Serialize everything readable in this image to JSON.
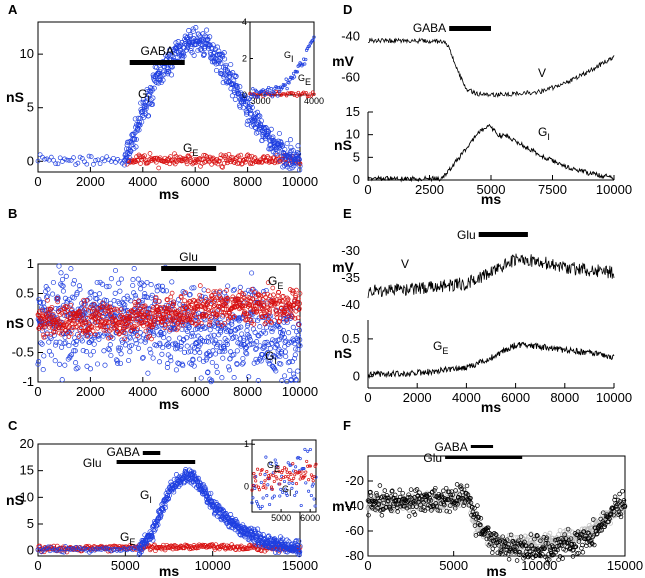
{
  "colors": {
    "gi": "#1f3fe0",
    "ge": "#d81010",
    "axis": "#000000",
    "gray": "#bbbbbb",
    "black": "#000000"
  },
  "chart_data": [
    {
      "panel": "A",
      "type": "scatter",
      "title": "A",
      "xlabel": "ms",
      "ylabel": "nS",
      "xlim": [
        0,
        10000
      ],
      "ylim": [
        -1,
        13
      ],
      "xticks": [
        0,
        2000,
        4000,
        6000,
        8000,
        10000
      ],
      "yticks": [
        0,
        5,
        10
      ],
      "bar": {
        "label": "GABA",
        "x0": 3500,
        "x1": 5600
      },
      "series": [
        {
          "name": "G",
          "sub": "I",
          "color": "gi",
          "points": [
            [
              0,
              0
            ],
            [
              3300,
              0
            ],
            [
              3600,
              1.8
            ],
            [
              4000,
              4.5
            ],
            [
              4500,
              7.5
            ],
            [
              5000,
              9.3
            ],
            [
              5500,
              10.6
            ],
            [
              6000,
              11.3
            ],
            [
              6500,
              10.8
            ],
            [
              7000,
              9.2
            ],
            [
              7500,
              7.0
            ],
            [
              8000,
              4.8
            ],
            [
              8500,
              3.0
            ],
            [
              9000,
              1.6
            ],
            [
              9500,
              0.6
            ],
            [
              10000,
              0.1
            ]
          ]
        },
        {
          "name": "G",
          "sub": "E",
          "color": "ge",
          "points": [
            [
              3500,
              0.1
            ],
            [
              6000,
              0.1
            ],
            [
              10000,
              0.1
            ]
          ]
        }
      ],
      "inset": {
        "xlim": [
          2800,
          4000
        ],
        "ylim": [
          0,
          4
        ],
        "xticks": [
          3000,
          4000
        ],
        "yticks": [
          0,
          2,
          4
        ],
        "labels": [
          {
            "name": "G",
            "sub": "I",
            "color": "gi"
          },
          {
            "name": "G",
            "sub": "E",
            "color": "ge"
          }
        ]
      }
    },
    {
      "panel": "B",
      "type": "scatter",
      "title": "B",
      "xlabel": "ms",
      "ylabel": "nS",
      "xlim": [
        0,
        10000
      ],
      "ylim": [
        -1,
        1
      ],
      "xticks": [
        0,
        2000,
        4000,
        6000,
        8000,
        10000
      ],
      "yticks": [
        1,
        0.5,
        0,
        -0.5,
        -1
      ],
      "ytick_labels": [
        "1",
        "0.5",
        "0",
        "-0.5",
        "-1"
      ],
      "bar": {
        "label": "Glu",
        "x0": 4700,
        "x1": 6800
      },
      "series": [
        {
          "name": "G",
          "sub": "E",
          "color": "ge",
          "points": [
            [
              0,
              0.05
            ],
            [
              3000,
              0.05
            ],
            [
              4000,
              0.05
            ],
            [
              5000,
              0.15
            ],
            [
              6000,
              0.25
            ],
            [
              7000,
              0.3
            ],
            [
              8000,
              0.3
            ],
            [
              9000,
              0.3
            ],
            [
              10000,
              0.3
            ]
          ]
        },
        {
          "name": "G",
          "sub": "I",
          "color": "gi",
          "points": [
            [
              0,
              0.05
            ],
            [
              4000,
              0.05
            ],
            [
              5000,
              -0.05
            ],
            [
              6000,
              -0.15
            ],
            [
              7000,
              -0.2
            ],
            [
              8000,
              -0.25
            ],
            [
              9000,
              -0.3
            ],
            [
              10000,
              -0.4
            ]
          ]
        }
      ]
    },
    {
      "panel": "C",
      "type": "scatter",
      "title": "C",
      "xlabel": "ms",
      "ylabel": "nS",
      "xlim": [
        0,
        15000
      ],
      "ylim": [
        -1,
        20
      ],
      "xticks": [
        0,
        5000,
        10000,
        15000
      ],
      "yticks": [
        0,
        5,
        10,
        15,
        20
      ],
      "bars": [
        {
          "label": "GABA",
          "x0": 6000,
          "x1": 7000
        },
        {
          "label": "Glu",
          "x0": 4500,
          "x1": 9000
        }
      ],
      "series": [
        {
          "name": "G",
          "sub": "I",
          "color": "gi",
          "points": [
            [
              0,
              0.3
            ],
            [
              5800,
              0.3
            ],
            [
              6500,
              3
            ],
            [
              7000,
              7
            ],
            [
              7500,
              11
            ],
            [
              8000,
              13.2
            ],
            [
              8500,
              14
            ],
            [
              9000,
              13.2
            ],
            [
              9500,
              11
            ],
            [
              10000,
              8.5
            ],
            [
              11000,
              5.5
            ],
            [
              12000,
              3.3
            ],
            [
              13000,
              1.8
            ],
            [
              14000,
              0.8
            ],
            [
              15000,
              0.3
            ]
          ]
        },
        {
          "name": "G",
          "sub": "E",
          "color": "ge",
          "points": [
            [
              0,
              0.3
            ],
            [
              6000,
              0.6
            ],
            [
              9000,
              0.8
            ],
            [
              15000,
              0.4
            ]
          ]
        }
      ],
      "inset": {
        "xlim": [
          4000,
          6200
        ],
        "ylim": [
          -0.6,
          1.1
        ],
        "xticks": [
          5000,
          6000
        ],
        "yticks": [
          1,
          0
        ],
        "labels": [
          {
            "name": "G",
            "sub": "E",
            "color": "ge"
          },
          {
            "name": "G",
            "sub": "I",
            "color": "gi"
          }
        ]
      }
    },
    {
      "panel": "D",
      "type": "line",
      "title": "D",
      "subplots": [
        {
          "name": "V",
          "ylabel": "mV",
          "ylim": [
            -72,
            -35
          ],
          "yticks": [
            -40,
            -60
          ],
          "bar": {
            "label": "GABA",
            "x0": 3300,
            "x1": 5000
          },
          "points": [
            [
              0,
              -42
            ],
            [
              3000,
              -42.5
            ],
            [
              3300,
              -45
            ],
            [
              3600,
              -56
            ],
            [
              4000,
              -66
            ],
            [
              4500,
              -68
            ],
            [
              5000,
              -68.5
            ],
            [
              6000,
              -68
            ],
            [
              7000,
              -67
            ],
            [
              8000,
              -63
            ],
            [
              9000,
              -57
            ],
            [
              10000,
              -50
            ]
          ]
        },
        {
          "name": "G",
          "sub": "I",
          "ylabel": "nS",
          "ylim": [
            0,
            15
          ],
          "yticks": [
            0,
            5,
            10,
            15
          ],
          "points": [
            [
              0,
              0.3
            ],
            [
              3000,
              0.3
            ],
            [
              3500,
              3.5
            ],
            [
              4000,
              7
            ],
            [
              4500,
              10.5
            ],
            [
              4900,
              12
            ],
            [
              5300,
              10
            ],
            [
              5700,
              9.5
            ],
            [
              6200,
              8
            ],
            [
              7000,
              5.5
            ],
            [
              8000,
              3
            ],
            [
              9000,
              1.5
            ],
            [
              10000,
              0.5
            ]
          ]
        }
      ],
      "xlabel": "ms",
      "xlim": [
        0,
        10000
      ],
      "xticks": [
        0,
        2500,
        5000,
        7500,
        10000
      ]
    },
    {
      "panel": "E",
      "type": "line",
      "title": "E",
      "subplots": [
        {
          "name": "V",
          "ylabel": "mV",
          "ylim": [
            -42,
            -28
          ],
          "yticks": [
            -30,
            -35,
            -40
          ],
          "bar": {
            "label": "Glu",
            "x0": 4500,
            "x1": 6500
          },
          "points": [
            [
              0,
              -37.5
            ],
            [
              2000,
              -37
            ],
            [
              4000,
              -36
            ],
            [
              5000,
              -34
            ],
            [
              6000,
              -31.5
            ],
            [
              7000,
              -32
            ],
            [
              8000,
              -33
            ],
            [
              9000,
              -33.5
            ],
            [
              10000,
              -34
            ]
          ]
        },
        {
          "name": "G",
          "sub": "E",
          "ylabel": "nS",
          "ylim": [
            -0.15,
            0.75
          ],
          "yticks": [
            0,
            0.5
          ],
          "points": [
            [
              0,
              0.02
            ],
            [
              2000,
              0.05
            ],
            [
              4000,
              0.12
            ],
            [
              5000,
              0.25
            ],
            [
              6000,
              0.42
            ],
            [
              7000,
              0.4
            ],
            [
              8000,
              0.35
            ],
            [
              9000,
              0.32
            ],
            [
              10000,
              0.26
            ]
          ]
        }
      ],
      "xlabel": "ms",
      "xlim": [
        0,
        10000
      ],
      "xticks": [
        0,
        2000,
        4000,
        6000,
        8000,
        10000
      ]
    },
    {
      "panel": "F",
      "type": "scatter",
      "title": "F",
      "xlabel": "ms",
      "ylabel": "mV",
      "xlim": [
        0,
        15000
      ],
      "ylim": [
        -80,
        0
      ],
      "xticks": [
        0,
        5000,
        10000,
        15000
      ],
      "yticks": [
        -20,
        -40,
        -60,
        -80
      ],
      "bars": [
        {
          "label": "GABA",
          "x0": 6000,
          "x1": 7300
        },
        {
          "label": "Glu",
          "x0": 4500,
          "x1": 9000
        }
      ],
      "series": [
        {
          "name": "gray",
          "color": "gray",
          "points": [
            [
              0,
              -38
            ],
            [
              5000,
              -37
            ],
            [
              5800,
              -33
            ],
            [
              6200,
              -52
            ],
            [
              6800,
              -65
            ],
            [
              8000,
              -70
            ],
            [
              10000,
              -69
            ],
            [
              12000,
              -65
            ],
            [
              13500,
              -55
            ],
            [
              14500,
              -44
            ],
            [
              15000,
              -40
            ]
          ]
        },
        {
          "name": "black",
          "color": "black",
          "points": [
            [
              0,
              -37
            ],
            [
              5000,
              -35
            ],
            [
              5800,
              -28
            ],
            [
              6200,
              -48
            ],
            [
              6800,
              -63
            ],
            [
              8000,
              -74
            ],
            [
              10000,
              -75
            ],
            [
              12000,
              -71
            ],
            [
              13500,
              -60
            ],
            [
              14500,
              -42
            ],
            [
              15000,
              -38
            ]
          ]
        }
      ]
    }
  ]
}
